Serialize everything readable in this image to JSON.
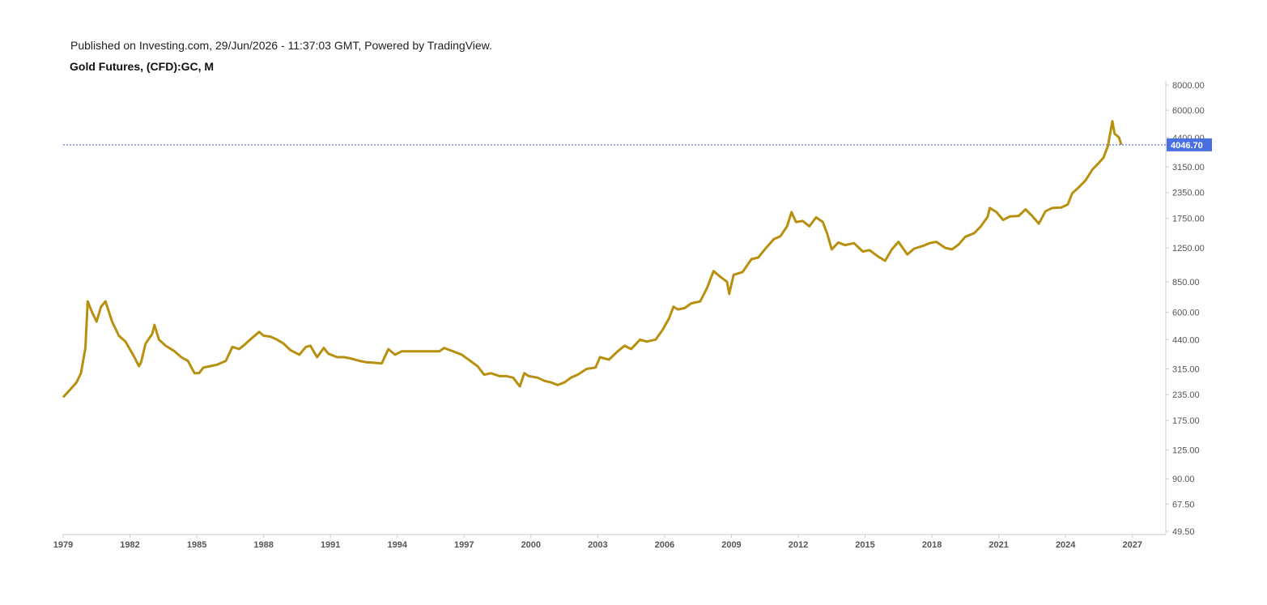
{
  "header": {
    "published": "Published on Investing.com, 29/Jun/2026 - 11:37:03 GMT, Powered by TradingView.",
    "title": "Gold Futures, (CFD):GC, M"
  },
  "colors": {
    "line": "#b8900f",
    "price_line": "#3b5bdb",
    "price_label_bg": "#4a6fe0",
    "axis": "#cccccc"
  },
  "chart_data": {
    "type": "line",
    "title": "Gold Futures, (CFD):GC, M",
    "xlabel": "",
    "ylabel": "",
    "y_scale": "log",
    "xlim": [
      1979,
      2028.5
    ],
    "ylim": [
      49.5,
      8000
    ],
    "x_ticks": [
      {
        "value": 1979,
        "label": "1979"
      },
      {
        "value": 1982,
        "label": "1982"
      },
      {
        "value": 1985,
        "label": "1985"
      },
      {
        "value": 1988,
        "label": "1988"
      },
      {
        "value": 1991,
        "label": "1991"
      },
      {
        "value": 1994,
        "label": "1994"
      },
      {
        "value": 1997,
        "label": "1997"
      },
      {
        "value": 2000,
        "label": "2000"
      },
      {
        "value": 2003,
        "label": "2003"
      },
      {
        "value": 2006,
        "label": "2006"
      },
      {
        "value": 2009,
        "label": "2009"
      },
      {
        "value": 2012,
        "label": "2012"
      },
      {
        "value": 2015,
        "label": "2015"
      },
      {
        "value": 2018,
        "label": "2018"
      },
      {
        "value": 2021,
        "label": "2021"
      },
      {
        "value": 2024,
        "label": "2024"
      },
      {
        "value": 2027,
        "label": "2027"
      }
    ],
    "y_ticks": [
      {
        "value": 8000,
        "label": "8000.00"
      },
      {
        "value": 6000,
        "label": "6000.00"
      },
      {
        "value": 4400,
        "label": "4400.00"
      },
      {
        "value": 3150,
        "label": "3150.00"
      },
      {
        "value": 2350,
        "label": "2350.00"
      },
      {
        "value": 1750,
        "label": "1750.00"
      },
      {
        "value": 1250,
        "label": "1250.00"
      },
      {
        "value": 850,
        "label": "850.00"
      },
      {
        "value": 600,
        "label": "600.00"
      },
      {
        "value": 440,
        "label": "440.00"
      },
      {
        "value": 315,
        "label": "315.00"
      },
      {
        "value": 235,
        "label": "235.00"
      },
      {
        "value": 175,
        "label": "175.00"
      },
      {
        "value": 125,
        "label": "125.00"
      },
      {
        "value": 90,
        "label": "90.00"
      },
      {
        "value": 67.5,
        "label": "67.50"
      },
      {
        "value": 49.5,
        "label": "49.50"
      }
    ],
    "last_price": {
      "value": 4046.7,
      "label": "4046.70"
    },
    "series": [
      {
        "points": [
          [
            1979.0,
            228
          ],
          [
            1979.3,
            248
          ],
          [
            1979.6,
            270
          ],
          [
            1979.8,
            300
          ],
          [
            1980.0,
            400
          ],
          [
            1980.1,
            680
          ],
          [
            1980.3,
            600
          ],
          [
            1980.5,
            540
          ],
          [
            1980.7,
            640
          ],
          [
            1980.9,
            680
          ],
          [
            1981.2,
            540
          ],
          [
            1981.5,
            460
          ],
          [
            1981.8,
            430
          ],
          [
            1982.2,
            360
          ],
          [
            1982.4,
            325
          ],
          [
            1982.5,
            340
          ],
          [
            1982.7,
            420
          ],
          [
            1983.0,
            470
          ],
          [
            1983.1,
            520
          ],
          [
            1983.3,
            440
          ],
          [
            1983.6,
            410
          ],
          [
            1984.0,
            385
          ],
          [
            1984.3,
            360
          ],
          [
            1984.6,
            345
          ],
          [
            1984.9,
            300
          ],
          [
            1985.1,
            300
          ],
          [
            1985.3,
            320
          ],
          [
            1985.6,
            325
          ],
          [
            1985.9,
            330
          ],
          [
            1986.3,
            345
          ],
          [
            1986.6,
            405
          ],
          [
            1986.9,
            395
          ],
          [
            1987.2,
            420
          ],
          [
            1987.5,
            450
          ],
          [
            1987.8,
            480
          ],
          [
            1988.0,
            460
          ],
          [
            1988.3,
            455
          ],
          [
            1988.6,
            440
          ],
          [
            1988.9,
            420
          ],
          [
            1989.2,
            390
          ],
          [
            1989.6,
            370
          ],
          [
            1989.9,
            405
          ],
          [
            1990.1,
            410
          ],
          [
            1990.4,
            360
          ],
          [
            1990.7,
            400
          ],
          [
            1990.9,
            375
          ],
          [
            1991.3,
            360
          ],
          [
            1991.6,
            360
          ],
          [
            1991.9,
            355
          ],
          [
            1992.3,
            345
          ],
          [
            1992.6,
            340
          ],
          [
            1992.9,
            338
          ],
          [
            1993.3,
            335
          ],
          [
            1993.6,
            395
          ],
          [
            1993.9,
            370
          ],
          [
            1994.2,
            385
          ],
          [
            1994.6,
            385
          ],
          [
            1994.9,
            385
          ],
          [
            1995.3,
            385
          ],
          [
            1995.6,
            385
          ],
          [
            1995.9,
            385
          ],
          [
            1996.1,
            400
          ],
          [
            1996.5,
            385
          ],
          [
            1996.9,
            370
          ],
          [
            1997.2,
            350
          ],
          [
            1997.6,
            325
          ],
          [
            1997.9,
            295
          ],
          [
            1998.2,
            300
          ],
          [
            1998.6,
            290
          ],
          [
            1998.9,
            290
          ],
          [
            1999.2,
            285
          ],
          [
            1999.5,
            258
          ],
          [
            1999.7,
            300
          ],
          [
            1999.9,
            290
          ],
          [
            2000.3,
            285
          ],
          [
            2000.6,
            275
          ],
          [
            2000.9,
            270
          ],
          [
            2001.2,
            262
          ],
          [
            2001.5,
            270
          ],
          [
            2001.8,
            285
          ],
          [
            2002.1,
            295
          ],
          [
            2002.5,
            315
          ],
          [
            2002.9,
            320
          ],
          [
            2003.1,
            360
          ],
          [
            2003.5,
            350
          ],
          [
            2003.9,
            385
          ],
          [
            2004.2,
            410
          ],
          [
            2004.5,
            395
          ],
          [
            2004.9,
            440
          ],
          [
            2005.2,
            430
          ],
          [
            2005.6,
            440
          ],
          [
            2005.9,
            490
          ],
          [
            2006.2,
            560
          ],
          [
            2006.4,
            640
          ],
          [
            2006.6,
            620
          ],
          [
            2006.9,
            630
          ],
          [
            2007.2,
            665
          ],
          [
            2007.6,
            680
          ],
          [
            2007.9,
            790
          ],
          [
            2008.2,
            960
          ],
          [
            2008.5,
            900
          ],
          [
            2008.8,
            850
          ],
          [
            2008.9,
            740
          ],
          [
            2009.1,
            920
          ],
          [
            2009.5,
            950
          ],
          [
            2009.9,
            1100
          ],
          [
            2010.2,
            1120
          ],
          [
            2010.5,
            1230
          ],
          [
            2010.9,
            1380
          ],
          [
            2011.2,
            1430
          ],
          [
            2011.5,
            1600
          ],
          [
            2011.7,
            1880
          ],
          [
            2011.9,
            1680
          ],
          [
            2012.2,
            1700
          ],
          [
            2012.5,
            1600
          ],
          [
            2012.8,
            1770
          ],
          [
            2013.1,
            1680
          ],
          [
            2013.3,
            1470
          ],
          [
            2013.5,
            1230
          ],
          [
            2013.8,
            1330
          ],
          [
            2014.1,
            1290
          ],
          [
            2014.5,
            1320
          ],
          [
            2014.9,
            1200
          ],
          [
            2015.2,
            1220
          ],
          [
            2015.6,
            1130
          ],
          [
            2015.9,
            1080
          ],
          [
            2016.2,
            1230
          ],
          [
            2016.5,
            1340
          ],
          [
            2016.9,
            1160
          ],
          [
            2017.2,
            1240
          ],
          [
            2017.6,
            1280
          ],
          [
            2017.9,
            1320
          ],
          [
            2018.2,
            1340
          ],
          [
            2018.6,
            1250
          ],
          [
            2018.9,
            1230
          ],
          [
            2019.2,
            1300
          ],
          [
            2019.5,
            1420
          ],
          [
            2019.9,
            1480
          ],
          [
            2020.2,
            1600
          ],
          [
            2020.5,
            1780
          ],
          [
            2020.6,
            1970
          ],
          [
            2020.9,
            1880
          ],
          [
            2021.2,
            1720
          ],
          [
            2021.5,
            1790
          ],
          [
            2021.9,
            1800
          ],
          [
            2022.2,
            1940
          ],
          [
            2022.5,
            1800
          ],
          [
            2022.8,
            1650
          ],
          [
            2023.1,
            1900
          ],
          [
            2023.4,
            1970
          ],
          [
            2023.8,
            1980
          ],
          [
            2024.1,
            2050
          ],
          [
            2024.3,
            2330
          ],
          [
            2024.6,
            2500
          ],
          [
            2024.9,
            2700
          ],
          [
            2025.2,
            3050
          ],
          [
            2025.5,
            3300
          ],
          [
            2025.7,
            3500
          ],
          [
            2025.9,
            4000
          ],
          [
            2026.1,
            5300
          ],
          [
            2026.2,
            4600
          ],
          [
            2026.4,
            4400
          ],
          [
            2026.5,
            4046.7
          ]
        ]
      }
    ]
  }
}
